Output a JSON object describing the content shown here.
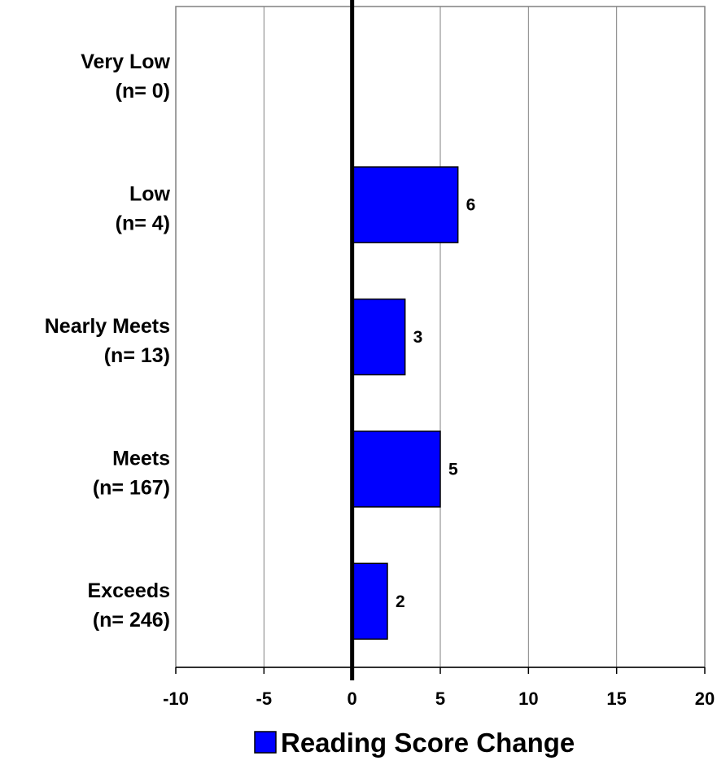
{
  "chart_data": {
    "type": "bar",
    "orientation": "horizontal",
    "categories": [
      [
        "Very Low",
        "(n= 0)"
      ],
      [
        "Low",
        "(n= 4)"
      ],
      [
        "Nearly Meets",
        "(n= 13)"
      ],
      [
        "Meets",
        "(n= 167)"
      ],
      [
        "Exceeds",
        "(n= 246)"
      ]
    ],
    "series": [
      {
        "name": "Reading Score Change",
        "values": [
          null,
          6,
          3,
          5,
          2
        ],
        "data_labels": [
          "",
          "6",
          "3",
          "5",
          "2"
        ],
        "color": "#0000ff"
      }
    ],
    "xlim": [
      -10,
      20
    ],
    "xticks": [
      -10,
      -5,
      0,
      5,
      10,
      15,
      20
    ],
    "xtick_labels": [
      "-10",
      "-5",
      "0",
      "5",
      "10",
      "15",
      "20"
    ],
    "grid": "vertical",
    "legend_position": "bottom",
    "colors": {
      "bar_fill": "#0000ff",
      "bar_stroke": "#000000",
      "gridline": "#808080",
      "zero_line": "#000000"
    }
  }
}
